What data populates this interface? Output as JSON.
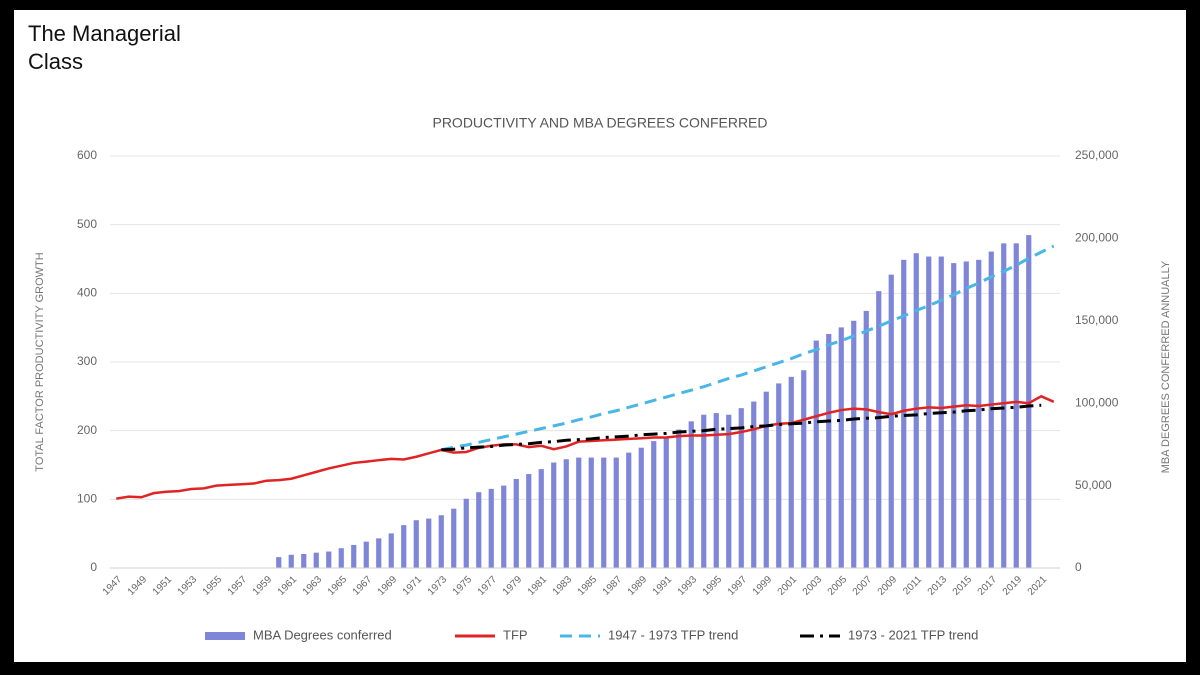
{
  "slide": {
    "title": "The Managerial Class"
  },
  "chart_data": {
    "type": "bar-line",
    "title": "PRODUCTIVITY AND MBA DEGREES CONFERRED",
    "ylabel": "TOTAL FACTOR PRODUCTIVITY GROWTH",
    "y2label": "MBA DEGREES CONFERRED ANNUALLY",
    "categories": [
      "1947",
      null,
      "1949",
      null,
      "1951",
      null,
      "1953",
      null,
      "1955",
      null,
      "1957",
      null,
      "1959",
      null,
      "1961",
      null,
      "1963",
      null,
      "1965",
      null,
      "1967",
      null,
      "1969",
      null,
      "1971",
      null,
      "1973",
      null,
      "1975",
      null,
      "1977",
      null,
      "1979",
      null,
      "1981",
      null,
      "1983",
      null,
      "1985",
      null,
      "1987",
      null,
      "1989",
      null,
      "1991",
      null,
      "1993",
      null,
      "1995",
      null,
      "1997",
      null,
      "1999",
      null,
      "2001",
      null,
      "2003",
      null,
      "2005",
      null,
      "2007",
      null,
      "2009",
      null,
      "2011",
      null,
      "2013",
      null,
      "2015",
      null,
      "2017",
      null,
      "2019",
      null,
      "2021",
      null
    ],
    "ylim": [
      0,
      600
    ],
    "yticks": [
      0,
      100,
      200,
      300,
      400,
      500,
      600
    ],
    "y2lim": [
      0,
      250000
    ],
    "y2ticks": [
      0,
      {
        "value": 50000,
        "label": "50,000"
      },
      {
        "value": 100000,
        "label": "100,000"
      },
      {
        "value": 150000,
        "label": "150,000"
      },
      {
        "value": 200000,
        "label": "200,000"
      },
      {
        "value": 250000,
        "label": "250,000"
      }
    ],
    "grid": true,
    "legend": "bottom",
    "series": [
      {
        "name": "MBA Degrees conferred",
        "type": "bar",
        "axis": "y2",
        "color": "#7f86d8",
        "values": [
          null,
          null,
          null,
          null,
          null,
          null,
          null,
          null,
          null,
          null,
          null,
          null,
          null,
          6600,
          8000,
          8500,
          9300,
          10000,
          12000,
          14000,
          16000,
          18000,
          21000,
          26000,
          29000,
          30000,
          32000,
          36000,
          42000,
          46000,
          48000,
          50000,
          54000,
          57000,
          60000,
          64000,
          66000,
          67000,
          67000,
          67000,
          67000,
          70000,
          73000,
          77000,
          79000,
          84000,
          89000,
          93000,
          94000,
          93000,
          97000,
          101000,
          107000,
          112000,
          116000,
          120000,
          138000,
          142000,
          146000,
          150000,
          156000,
          168000,
          178000,
          187000,
          191000,
          189000,
          189000,
          185000,
          186000,
          187000,
          192000,
          197000,
          197000,
          202000,
          null,
          null
        ]
      },
      {
        "name": "TFP",
        "type": "line",
        "style": "solid",
        "color": "#e02424",
        "values": [
          101,
          104,
          103,
          109,
          111,
          112,
          115,
          116,
          120,
          121,
          122,
          123,
          127,
          128,
          130,
          135,
          140,
          145,
          149,
          153,
          155,
          157,
          159,
          158,
          162,
          167,
          172,
          168,
          169,
          175,
          178,
          180,
          180,
          176,
          178,
          173,
          177,
          184,
          185,
          186,
          187,
          188,
          189,
          190,
          190,
          192,
          193,
          193,
          194,
          195,
          198,
          202,
          207,
          210,
          211,
          216,
          221,
          226,
          230,
          232,
          231,
          227,
          224,
          229,
          232,
          234,
          233,
          235,
          237,
          236,
          238,
          240,
          242,
          240,
          250,
          242
        ]
      },
      {
        "name": "1947 - 1973 TFP trend",
        "type": "line",
        "style": "dash",
        "color": "#4ab6e6",
        "values": [
          null,
          null,
          null,
          null,
          null,
          null,
          null,
          null,
          null,
          null,
          null,
          null,
          null,
          null,
          null,
          null,
          null,
          null,
          null,
          null,
          null,
          null,
          null,
          null,
          null,
          null,
          172,
          176,
          179,
          183,
          187,
          191,
          195,
          199,
          203,
          207,
          211,
          216,
          220,
          225,
          229,
          234,
          239,
          244,
          249,
          254,
          259,
          264,
          270,
          276,
          281,
          287,
          293,
          299,
          305,
          312,
          318,
          325,
          331,
          338,
          345,
          352,
          360,
          367,
          375,
          382,
          390,
          398,
          407,
          415,
          424,
          432,
          441,
          451,
          460,
          469
        ]
      },
      {
        "name": "1973 - 2021 TFP trend",
        "type": "line",
        "style": "dashdot",
        "color": "#000000",
        "values": [
          null,
          null,
          null,
          null,
          null,
          null,
          null,
          null,
          null,
          null,
          null,
          null,
          null,
          null,
          null,
          null,
          null,
          null,
          null,
          null,
          null,
          null,
          null,
          null,
          null,
          null,
          172,
          173,
          175,
          176,
          177,
          179,
          180,
          181,
          183,
          184,
          186,
          187,
          188,
          190,
          191,
          192,
          194,
          195,
          196,
          198,
          199,
          200,
          202,
          203,
          204,
          206,
          207,
          209,
          210,
          211,
          213,
          214,
          215,
          217,
          218,
          219,
          221,
          222,
          223,
          225,
          226,
          227,
          229,
          230,
          232,
          233,
          234,
          236,
          237,
          null
        ]
      }
    ]
  }
}
